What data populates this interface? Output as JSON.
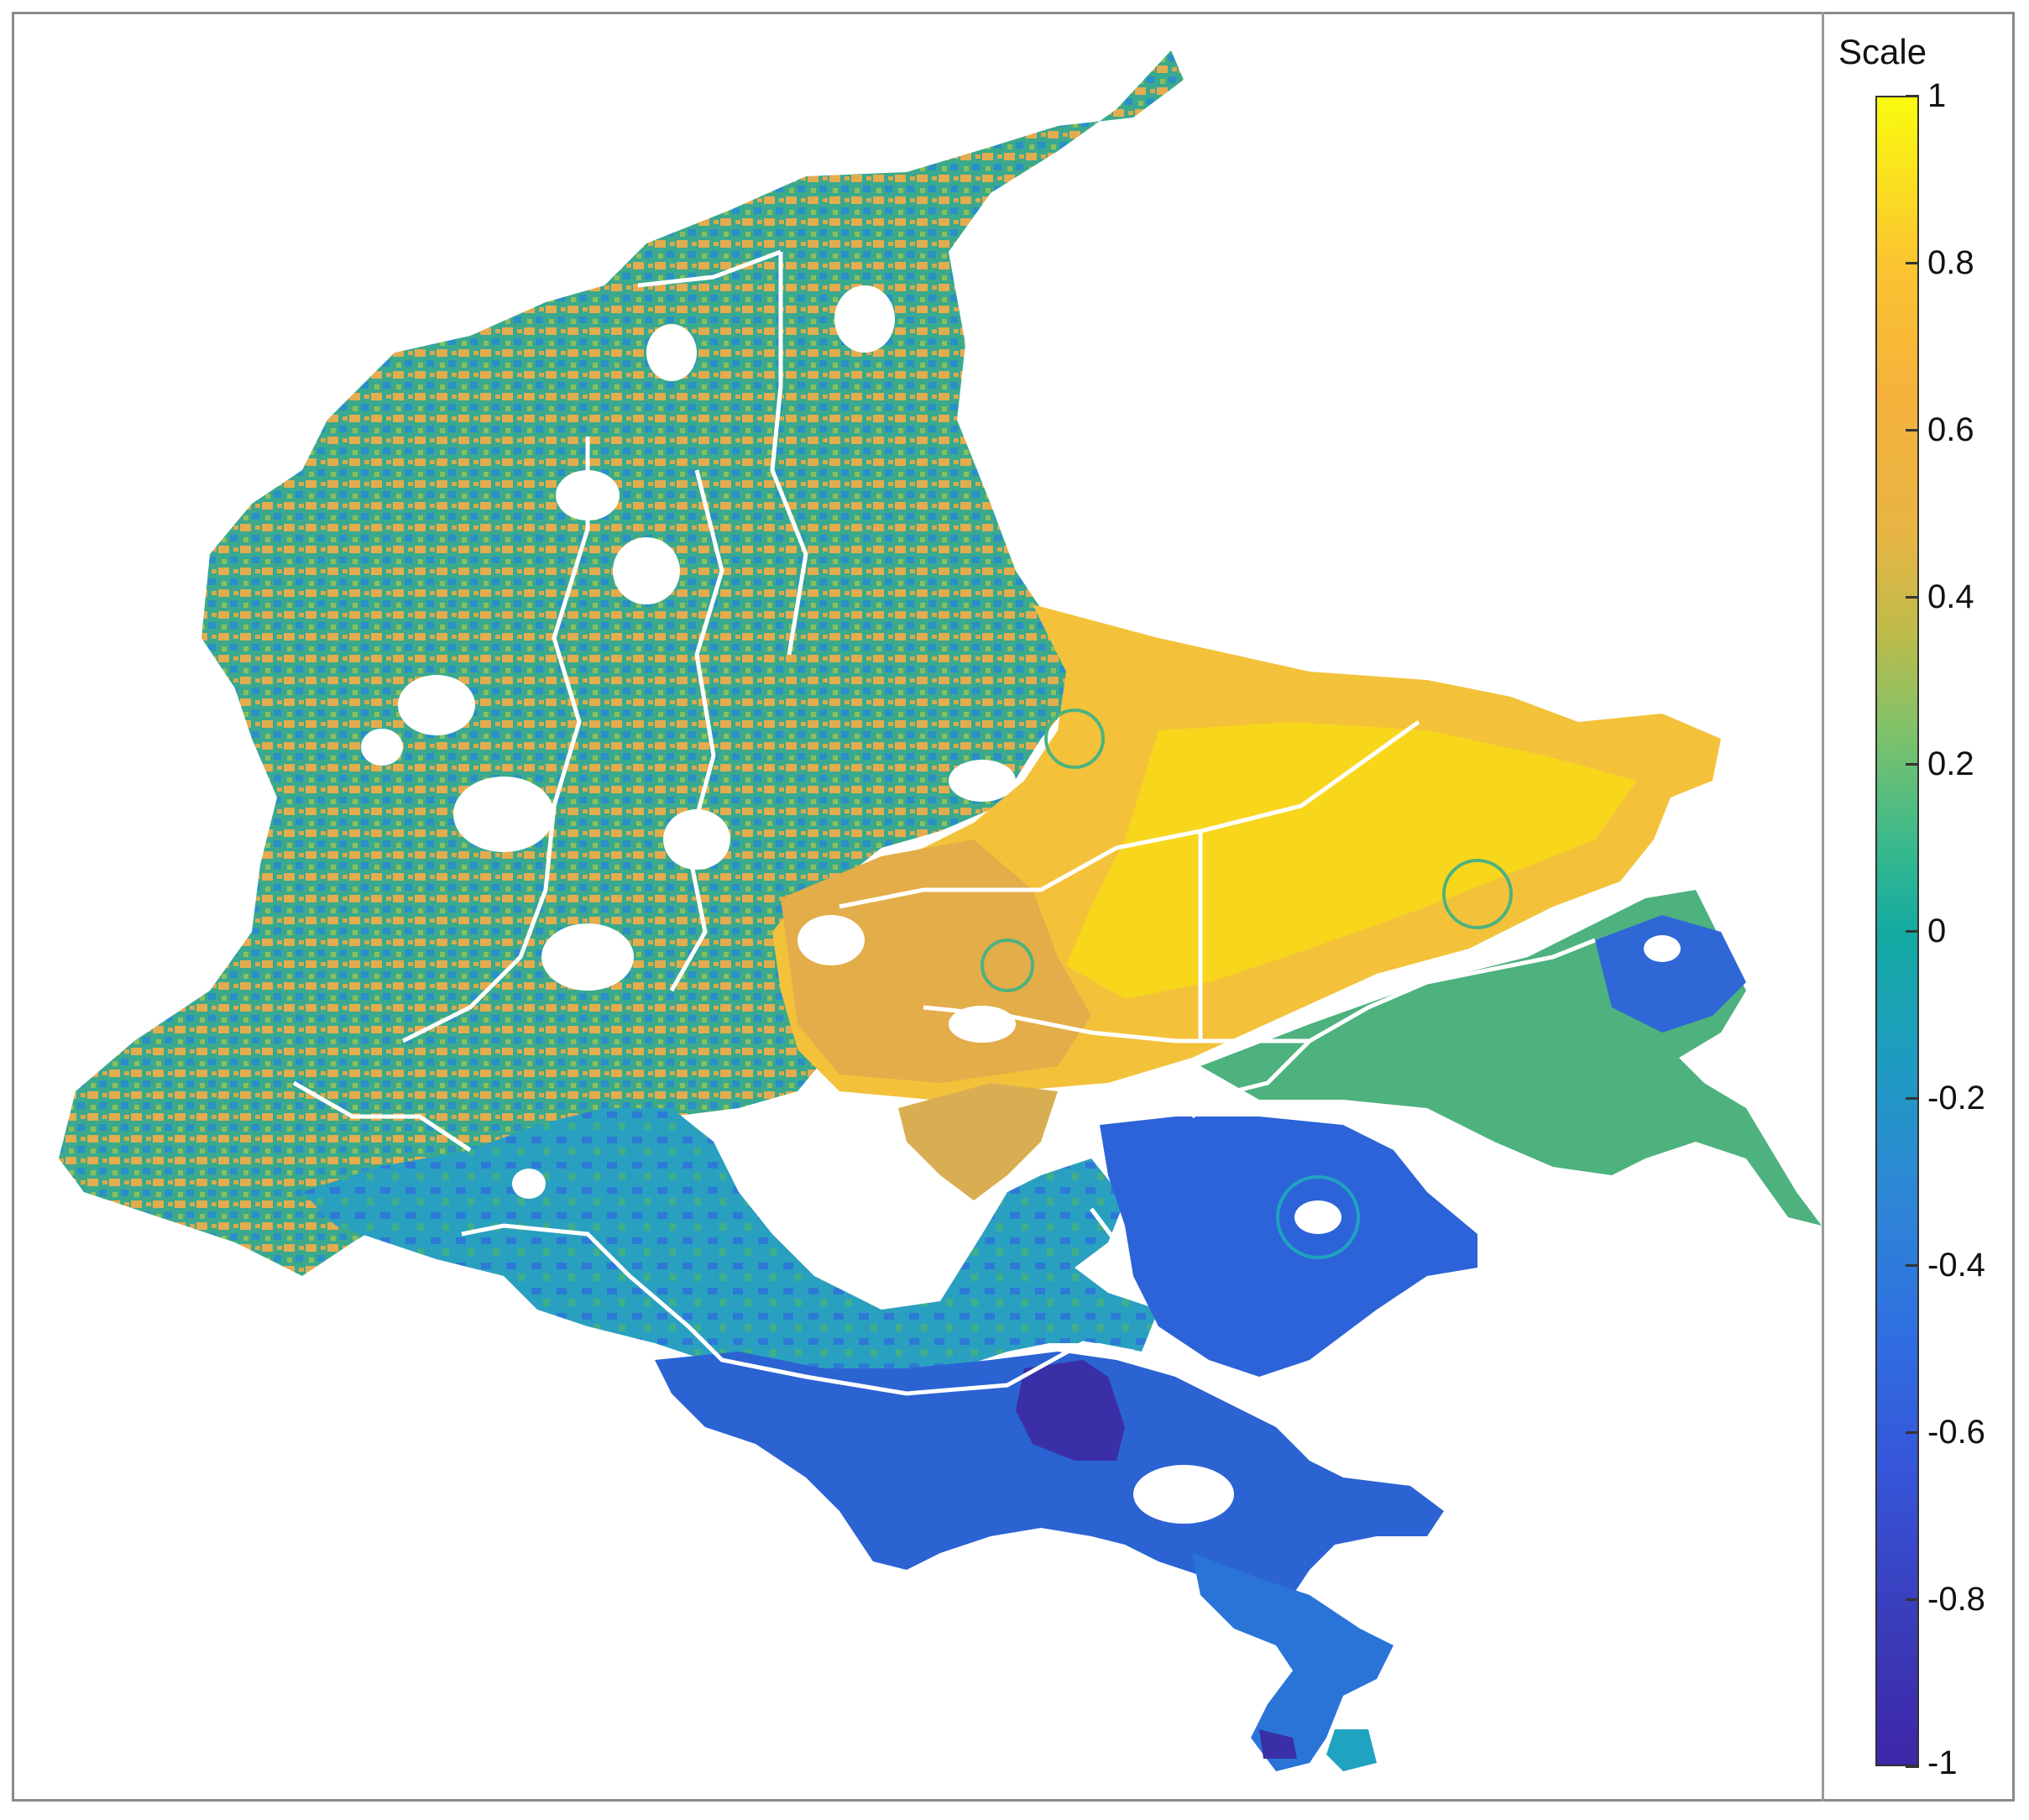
{
  "colorbar": {
    "title": "Scale",
    "ticks": [
      {
        "value": 1,
        "label": "1"
      },
      {
        "value": 0.8,
        "label": "0.8"
      },
      {
        "value": 0.6,
        "label": "0.6"
      },
      {
        "value": 0.4,
        "label": "0.4"
      },
      {
        "value": 0.2,
        "label": "0.2"
      },
      {
        "value": 0,
        "label": "0"
      },
      {
        "value": -0.2,
        "label": "-0.2"
      },
      {
        "value": -0.4,
        "label": "-0.4"
      },
      {
        "value": -0.6,
        "label": "-0.6"
      },
      {
        "value": -0.8,
        "label": "-0.8"
      },
      {
        "value": -1,
        "label": "-1"
      }
    ],
    "range": [
      -1,
      1
    ],
    "colormap": "parula",
    "colors": {
      "max": "#f9fb0e",
      "high": "#f5b13c",
      "mid": "#14aaa2",
      "low": "#2f6fe0",
      "min": "#3e26a8"
    }
  },
  "map": {
    "region_colors": {
      "northwest_mix": "#3aa98d",
      "andes_orange": "#e6ad4a",
      "east_yellow": "#f7cd2a",
      "southeast_green": "#5db57a",
      "south_teal": "#20a6bf",
      "south_blue": "#2d63d8",
      "deep_blue": "#3a2fa6",
      "boundary": "#ffffff"
    }
  }
}
